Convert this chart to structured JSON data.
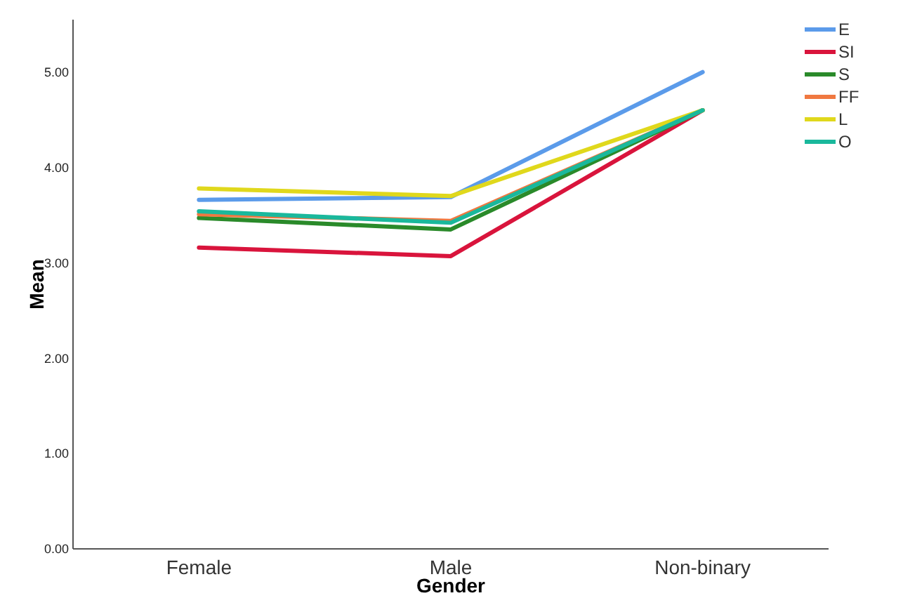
{
  "chart_data": {
    "type": "line",
    "xlabel": "Gender",
    "ylabel": "Mean",
    "categories": [
      "Female",
      "Male",
      "Non-binary"
    ],
    "series": [
      {
        "name": "E",
        "color": "#5b9bea",
        "values": [
          3.66,
          3.69,
          5.0
        ]
      },
      {
        "name": "SI",
        "color": "#d9143c",
        "values": [
          3.16,
          3.07,
          4.6
        ]
      },
      {
        "name": "S",
        "color": "#2a8a2a",
        "values": [
          3.47,
          3.35,
          4.6
        ]
      },
      {
        "name": "FF",
        "color": "#f07840",
        "values": [
          3.51,
          3.44,
          4.6
        ]
      },
      {
        "name": "L",
        "color": "#e0d81c",
        "values": [
          3.78,
          3.7,
          4.6
        ]
      },
      {
        "name": "O",
        "color": "#1ab89c",
        "values": [
          3.54,
          3.42,
          4.6
        ]
      }
    ],
    "ylim": [
      0,
      5.55
    ],
    "yticks": [
      {
        "value": 0,
        "label": "0.00"
      },
      {
        "value": 1,
        "label": "1.00"
      },
      {
        "value": 2,
        "label": "2.00"
      },
      {
        "value": 3,
        "label": "3.00"
      },
      {
        "value": 4,
        "label": "4.00"
      },
      {
        "value": 5,
        "label": "5.00"
      }
    ],
    "grid": false,
    "legend": "top right",
    "marker": "none",
    "line_style": "solid"
  }
}
